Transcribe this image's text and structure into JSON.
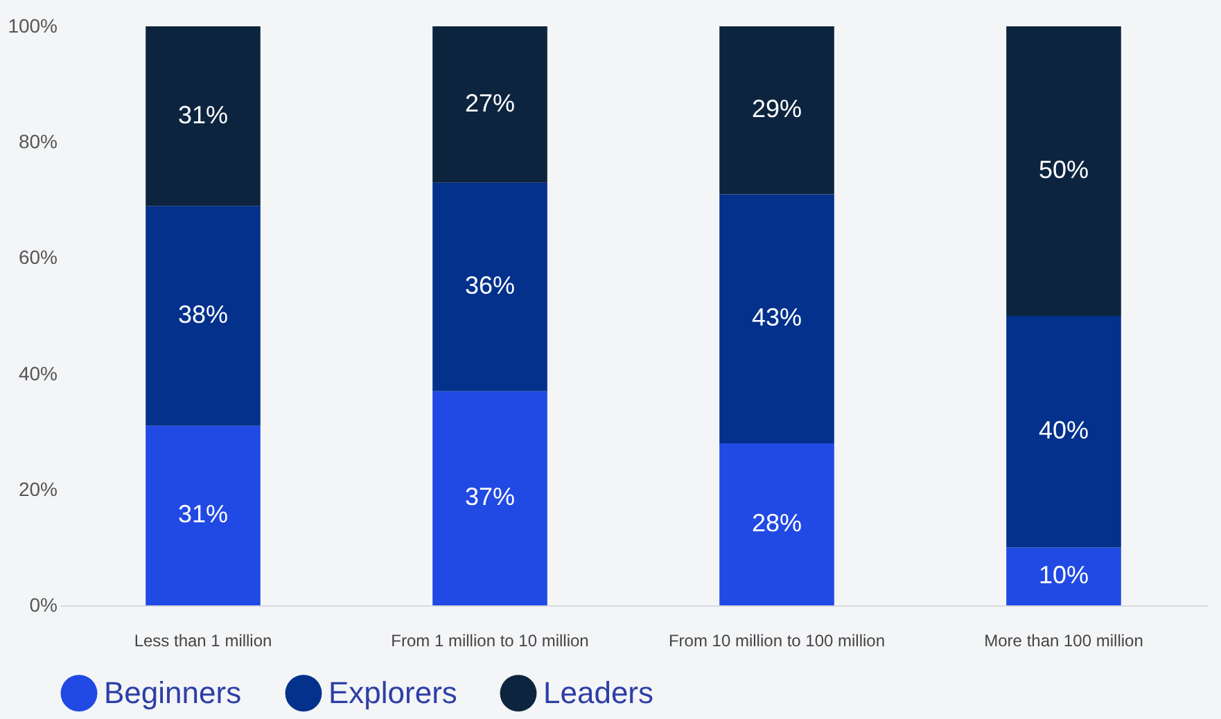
{
  "chart_data": {
    "type": "bar",
    "stacked": true,
    "categories": [
      "Less  than 1 million",
      "From 1 million to 10 million",
      "From 10 million to 100 million",
      "More than 100 million"
    ],
    "series": [
      {
        "name": "Beginners",
        "color": "#2149e3",
        "values": [
          31,
          37,
          28,
          10
        ],
        "value_labels": [
          "31%",
          "37%",
          "28%",
          "10%"
        ]
      },
      {
        "name": "Explorers",
        "color": "#03318c",
        "values": [
          38,
          36,
          43,
          40
        ],
        "value_labels": [
          "38%",
          "36%",
          "43%",
          "40%"
        ]
      },
      {
        "name": "Leaders",
        "color": "#0d243f",
        "values": [
          31,
          27,
          29,
          50
        ],
        "value_labels": [
          "31%",
          "27%",
          "29%",
          "50%"
        ]
      }
    ],
    "ylim": [
      0,
      100
    ],
    "yticks": [
      {
        "value": 0,
        "label": "0%"
      },
      {
        "value": 20,
        "label": "20%"
      },
      {
        "value": 40,
        "label": "40%"
      },
      {
        "value": 60,
        "label": "60%"
      },
      {
        "value": 80,
        "label": "80%"
      },
      {
        "value": 100,
        "label": "100%"
      }
    ],
    "grid": false,
    "legend": "bottom"
  }
}
